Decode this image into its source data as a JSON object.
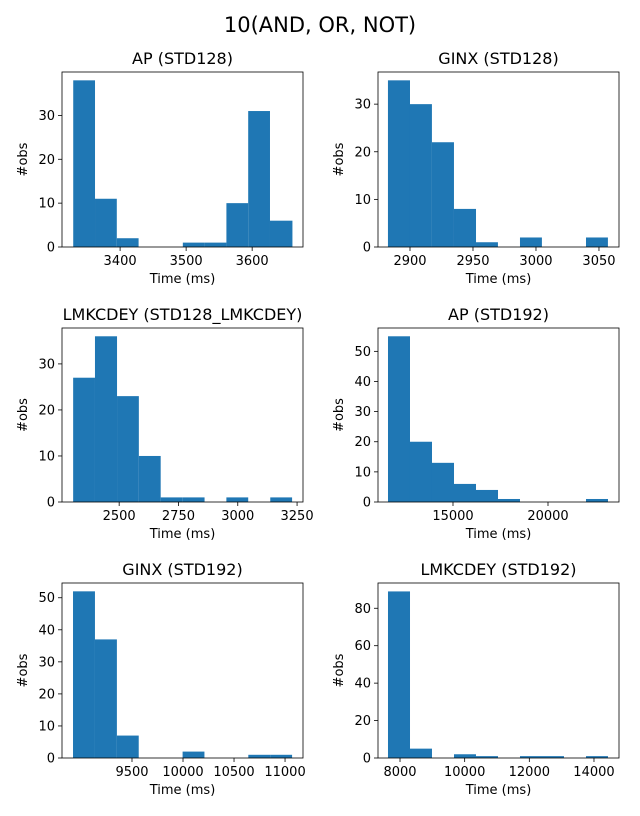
{
  "title": "10(AND, OR, NOT)",
  "chart_data": [
    {
      "type": "histogram",
      "title": "AP (STD128)",
      "xlabel": "Time (ms)",
      "ylabel": "#obs",
      "color": "#1f77b4",
      "bins": [
        3329,
        3362,
        3395,
        3428,
        3462,
        3495,
        3528,
        3561,
        3594,
        3627,
        3661
      ],
      "values": [
        38,
        11,
        2,
        0,
        0,
        1,
        1,
        10,
        31,
        6
      ],
      "xlim": [
        3312,
        3677
      ],
      "ylim": [
        0,
        39.9
      ],
      "xticks": [
        3400,
        3500,
        3600
      ],
      "yticks": [
        0,
        10,
        20,
        30
      ]
    },
    {
      "type": "histogram",
      "title": "GINX (STD128)",
      "xlabel": "Time (ms)",
      "ylabel": "#obs",
      "color": "#1f77b4",
      "bins": [
        2882.5,
        2900,
        2917.4,
        2934.9,
        2952.4,
        2969.8,
        2987.3,
        3004.7,
        3022.2,
        3039.7,
        3057.1
      ],
      "values": [
        35,
        30,
        22,
        8,
        1,
        0,
        2,
        0,
        0,
        2
      ],
      "xlim": [
        2874.6,
        3065.9
      ],
      "ylim": [
        0,
        36.75
      ],
      "xticks": [
        2900,
        2950,
        3000,
        3050
      ],
      "yticks": [
        0,
        10,
        20,
        30
      ]
    },
    {
      "type": "histogram",
      "title": "LMKCDEY (STD128_LMKCDEY)",
      "xlabel": "Time (ms)",
      "ylabel": "#obs",
      "color": "#1f77b4",
      "bins": [
        2306,
        2398,
        2491,
        2583,
        2675,
        2768,
        2860,
        2952,
        3044,
        3137,
        3229
      ],
      "values": [
        27,
        36,
        23,
        10,
        1,
        1,
        0,
        1,
        0,
        1
      ],
      "xlim": [
        2259,
        3275
      ],
      "ylim": [
        0,
        37.8
      ],
      "xticks": [
        2500,
        2750,
        3000,
        3250
      ],
      "yticks": [
        0,
        10,
        20,
        30
      ]
    },
    {
      "type": "histogram",
      "title": "AP (STD192)",
      "xlabel": "Time (ms)",
      "ylabel": "#obs",
      "color": "#1f77b4",
      "bins": [
        11579,
        12737,
        13895,
        15053,
        16211,
        17369,
        18526,
        19684,
        20842,
        22000,
        23158
      ],
      "values": [
        55,
        20,
        13,
        6,
        4,
        1,
        0,
        0,
        0,
        1
      ],
      "xlim": [
        11053,
        23737
      ],
      "ylim": [
        0,
        57.75
      ],
      "xticks": [
        15000,
        20000
      ],
      "yticks": [
        0,
        10,
        20,
        30,
        40,
        50
      ]
    },
    {
      "type": "histogram",
      "title": "GINX (STD192)",
      "xlabel": "Time (ms)",
      "ylabel": "#obs",
      "color": "#1f77b4",
      "bins": [
        8922,
        9137,
        9352,
        9566,
        9781,
        9996,
        10210,
        10425,
        10640,
        10854,
        11069
      ],
      "values": [
        52,
        37,
        7,
        0,
        0,
        2,
        0,
        0,
        1,
        1
      ],
      "xlim": [
        8814,
        11176
      ],
      "ylim": [
        0,
        54.6
      ],
      "xticks": [
        9500,
        10000,
        10500,
        11000
      ],
      "yticks": [
        0,
        10,
        20,
        30,
        40,
        50
      ]
    },
    {
      "type": "histogram",
      "title": "LMKCDEY (STD192)",
      "xlabel": "Time (ms)",
      "ylabel": "#obs",
      "color": "#1f77b4",
      "bins": [
        7628,
        8309,
        8989,
        9670,
        10350,
        11031,
        11711,
        12392,
        13072,
        13753,
        14433
      ],
      "values": [
        89,
        5,
        0,
        2,
        1,
        0,
        1,
        1,
        0,
        1
      ],
      "xlim": [
        7319,
        14774
      ],
      "ylim": [
        0,
        93.5
      ],
      "xticks": [
        8000,
        10000,
        12000,
        14000
      ],
      "yticks": [
        0,
        20,
        40,
        60,
        80
      ]
    }
  ]
}
